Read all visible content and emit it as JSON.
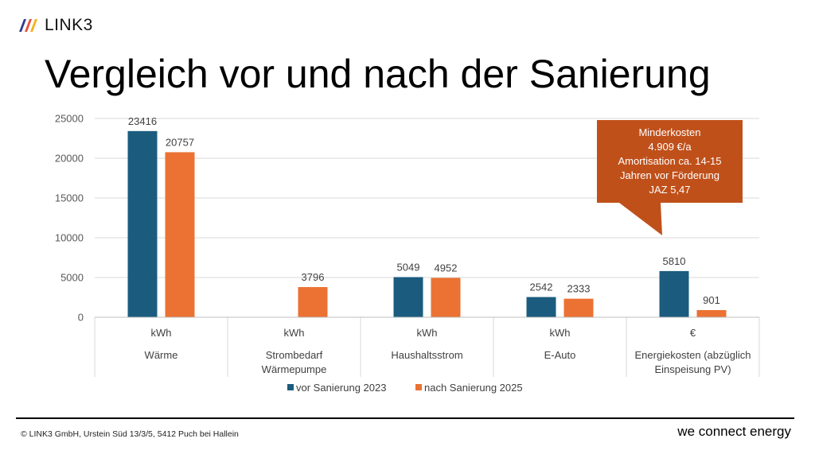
{
  "brand": {
    "name": "LINK3"
  },
  "slide": {
    "title": "Vergleich vor und nach der Sanierung",
    "copyright": "© LINK3 GmbH, Urstein Süd 13/3/5, 5412 Puch bei Hallein",
    "tagline": "we connect energy"
  },
  "callout": {
    "lines": [
      "Minderkosten",
      "4.909 €/a",
      "Amortisation ca. 14-15",
      "Jahren vor Förderung",
      "JAZ 5,47"
    ],
    "color": "#C0501A"
  },
  "chart_data": {
    "type": "bar",
    "title": "",
    "ylim": [
      0,
      25000
    ],
    "yticks": [
      "0",
      "5000",
      "10000",
      "15000",
      "20000",
      "25000"
    ],
    "grid": true,
    "legend_position": "bottom",
    "categories": [
      {
        "unit": "kWh",
        "name": [
          "Wärme"
        ]
      },
      {
        "unit": "kWh",
        "name": [
          "Strombedarf",
          "Wärmepumpe"
        ]
      },
      {
        "unit": "kWh",
        "name": [
          "Haushaltsstrom"
        ]
      },
      {
        "unit": "kWh",
        "name": [
          "E-Auto"
        ]
      },
      {
        "unit": "€",
        "name": [
          "Energiekosten (abzüglich",
          "Einspeisung PV)"
        ]
      }
    ],
    "series": [
      {
        "name": "vor Sanierung  2023",
        "color": "#1B5C7E",
        "values": [
          23416,
          null,
          5049,
          2542,
          5810
        ],
        "labels": [
          "23416",
          "",
          "5049",
          "2542",
          "5810"
        ]
      },
      {
        "name": "nach Sanierung 2025",
        "color": "#EB7233",
        "values": [
          20757,
          3796,
          4952,
          2333,
          901
        ],
        "labels": [
          "20757",
          "3796",
          "4952",
          "2333",
          "901"
        ]
      }
    ]
  }
}
